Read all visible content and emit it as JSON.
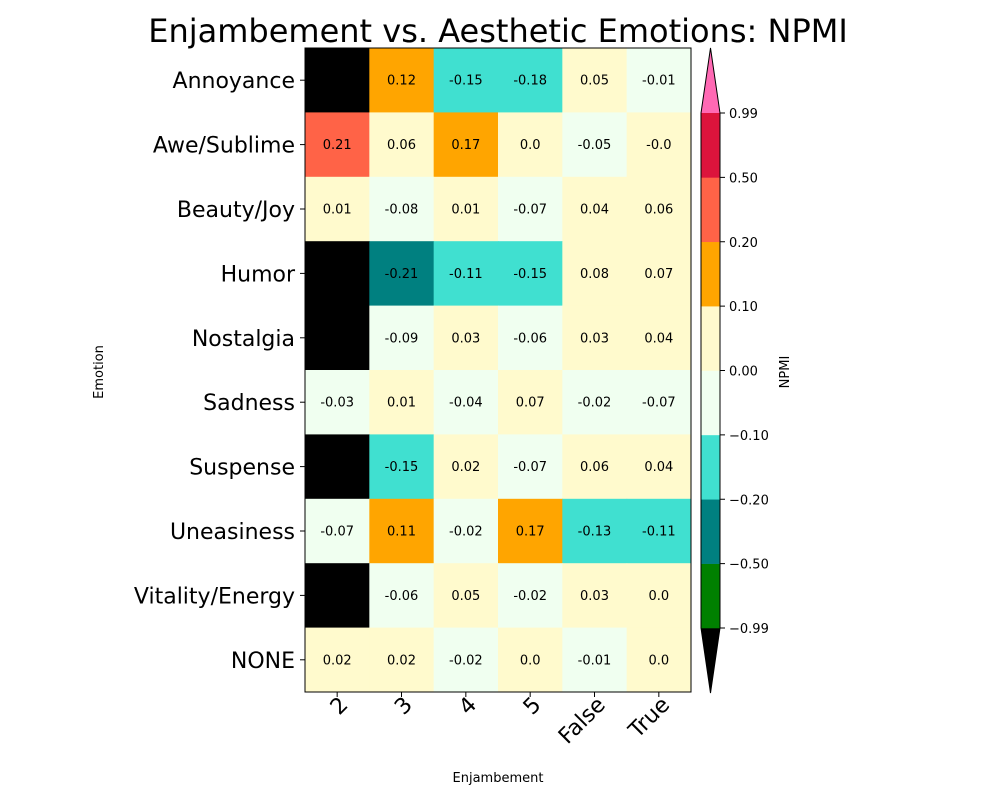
{
  "chart_data": {
    "type": "heatmap",
    "title": "Enjambement vs. Aesthetic Emotions: NPMI",
    "xlabel": "Enjambement",
    "ylabel": "Emotion",
    "colorbar_label": "NPMI",
    "x_categories": [
      "2",
      "3",
      "4",
      "5",
      "False",
      "True"
    ],
    "y_categories": [
      "Annoyance",
      "Awe/Sublime",
      "Beauty/Joy",
      "Humor",
      "Nostalgia",
      "Sadness",
      "Suspense",
      "Uneasiness",
      "Vitality/Energy",
      "NONE"
    ],
    "values": [
      [
        null,
        "0.12",
        "-0.15",
        "-0.18",
        "0.05",
        "-0.01"
      ],
      [
        "0.21",
        "0.06",
        "0.17",
        "0.0",
        "-0.05",
        "-0.0"
      ],
      [
        "0.01",
        "-0.08",
        "0.01",
        "-0.07",
        "0.04",
        "0.06"
      ],
      [
        null,
        "-0.21",
        "-0.11",
        "-0.15",
        "0.08",
        "0.07"
      ],
      [
        null,
        "-0.09",
        "0.03",
        "-0.06",
        "0.03",
        "0.04"
      ],
      [
        "-0.03",
        "0.01",
        "-0.04",
        "0.07",
        "-0.02",
        "-0.07"
      ],
      [
        null,
        "-0.15",
        "0.02",
        "-0.07",
        "0.06",
        "0.04"
      ],
      [
        "-0.07",
        "0.11",
        "-0.02",
        "0.17",
        "-0.13",
        "-0.11"
      ],
      [
        null,
        "-0.06",
        "0.05",
        "-0.02",
        "0.03",
        "0.0"
      ],
      [
        "0.02",
        "0.02",
        "-0.02",
        "0.0",
        "-0.01",
        "0.0"
      ]
    ],
    "colorbar": {
      "bounds": [
        -0.99,
        -0.5,
        -0.2,
        -0.1,
        0.0,
        0.1,
        0.2,
        0.5,
        0.99
      ],
      "tick_labels": [
        "−0.99",
        "−0.50",
        "−0.20",
        "−0.10",
        "0.00",
        "0.10",
        "0.20",
        "0.50",
        "0.99"
      ],
      "colors": [
        "#008000",
        "#008080",
        "#40e0d0",
        "#f0fff0",
        "#fffacd",
        "#ffa500",
        "#ff6347",
        "#dc143c"
      ],
      "under_color": "#000000",
      "over_color": "#ff69b4",
      "extend": "both"
    }
  }
}
